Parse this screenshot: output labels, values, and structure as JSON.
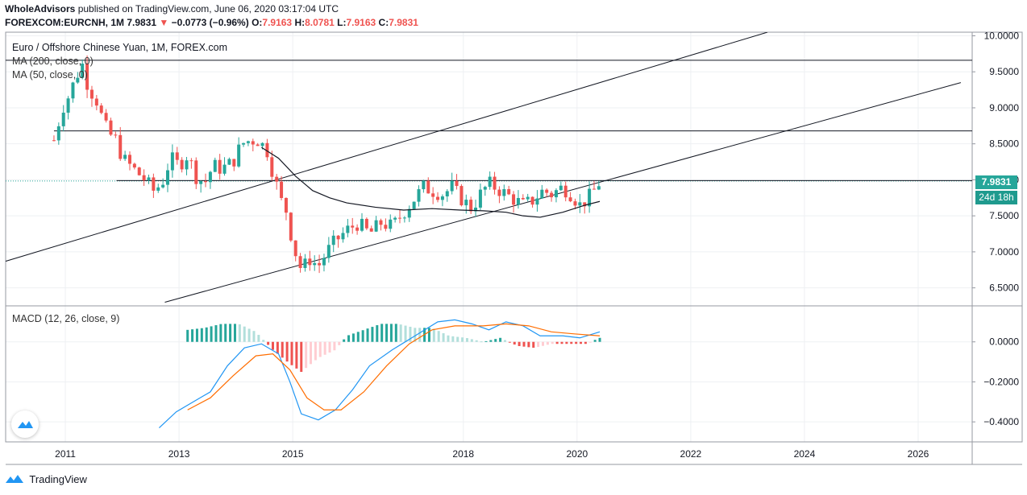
{
  "header": {
    "author": "WholeAdvisors",
    "published_text": "published on TradingView.com, June 06, 2020 03:17:04 UTC",
    "symbol": "FOREXCOM:EURCNH, 1M",
    "last": "7.9831",
    "change": "−0.0773 (−0.96%)",
    "change_arrow": "▼",
    "open_label": "O:",
    "open": "7.9163",
    "high_label": "H:",
    "high": "8.0781",
    "low_label": "L:",
    "low": "7.9163",
    "close_label": "C:",
    "close": "7.9831"
  },
  "legend": {
    "title": "Euro / Offshore Chinese Yuan, 1M, FOREX.com",
    "ma200": "MA (200, close, 0)",
    "ma50": "MA (50, close, 0)",
    "macd": "MACD (12, 26, close, 9)"
  },
  "price_tag": "7.9831",
  "countdown_tag": "24d 18h",
  "footer": {
    "brand": "TradingView"
  },
  "colors": {
    "up": "#26a69a",
    "down": "#ef5350",
    "macd_line": "#2196f3",
    "signal_line": "#ff6d00",
    "hist_up_strong": "#26a69a",
    "hist_up_weak": "#b2dfdb",
    "hist_down_strong": "#ef5350",
    "hist_down_weak": "#ffcdd2"
  },
  "chart_data": [
    {
      "type": "candlestick",
      "title": "Euro / Offshore Chinese Yuan, 1M, FOREX.com",
      "y_ticks": [
        "10.0000",
        "9.5000",
        "9.0000",
        "8.5000",
        "8.0000",
        "7.5000",
        "7.0000",
        "6.5000"
      ],
      "x_ticks": [
        "2011",
        "2013",
        "2015",
        "2018",
        "2020",
        "2022",
        "2024",
        "2026"
      ],
      "ylim": [
        6.25,
        10.05
      ],
      "xlim": [
        2010.0,
        2027.0
      ],
      "grid": true,
      "last_price": 7.9831,
      "close_path": [
        [
          2010.85,
          8.55
        ],
        [
          2011.0,
          9.0
        ],
        [
          2011.1,
          9.15
        ],
        [
          2011.25,
          9.45
        ],
        [
          2011.35,
          9.6
        ],
        [
          2011.45,
          9.3
        ],
        [
          2011.6,
          9.1
        ],
        [
          2011.7,
          8.85
        ],
        [
          2011.8,
          8.65
        ],
        [
          2011.95,
          8.55
        ],
        [
          2012.05,
          8.3
        ],
        [
          2012.25,
          8.15
        ],
        [
          2012.45,
          8.0
        ],
        [
          2012.6,
          7.85
        ],
        [
          2012.75,
          7.95
        ],
        [
          2012.9,
          8.3
        ],
        [
          2013.05,
          8.2
        ],
        [
          2013.2,
          8.35
        ],
        [
          2013.35,
          8.05
        ],
        [
          2013.5,
          7.95
        ],
        [
          2013.65,
          8.2
        ],
        [
          2013.8,
          8.15
        ],
        [
          2014.0,
          8.25
        ],
        [
          2014.15,
          8.5
        ],
        [
          2014.3,
          8.55
        ],
        [
          2014.45,
          8.55
        ],
        [
          2014.6,
          8.4
        ],
        [
          2014.7,
          8.1
        ],
        [
          2014.85,
          7.7
        ],
        [
          2014.95,
          7.55
        ],
        [
          2015.05,
          7.1
        ],
        [
          2015.2,
          6.75
        ],
        [
          2015.35,
          6.9
        ],
        [
          2015.5,
          6.8
        ],
        [
          2015.65,
          7.0
        ],
        [
          2015.8,
          7.15
        ],
        [
          2016.0,
          7.3
        ],
        [
          2016.2,
          7.4
        ],
        [
          2016.4,
          7.25
        ],
        [
          2016.6,
          7.4
        ],
        [
          2016.8,
          7.35
        ],
        [
          2017.0,
          7.55
        ],
        [
          2017.15,
          7.7
        ],
        [
          2017.35,
          7.9
        ],
        [
          2017.5,
          7.85
        ],
        [
          2017.7,
          7.8
        ],
        [
          2017.85,
          7.9
        ],
        [
          2018.0,
          7.75
        ],
        [
          2018.2,
          7.6
        ],
        [
          2018.35,
          7.8
        ],
        [
          2018.5,
          7.95
        ],
        [
          2018.7,
          7.85
        ],
        [
          2018.9,
          7.75
        ],
        [
          2019.1,
          7.65
        ],
        [
          2019.25,
          7.7
        ],
        [
          2019.45,
          7.85
        ],
        [
          2019.6,
          7.8
        ],
        [
          2019.8,
          7.9
        ],
        [
          2019.95,
          7.8
        ],
        [
          2020.1,
          7.65
        ],
        [
          2020.25,
          7.75
        ],
        [
          2020.4,
          7.9
        ],
        [
          2020.45,
          7.98
        ]
      ],
      "ma_line": [
        [
          2014.5,
          8.45
        ],
        [
          2014.8,
          8.3
        ],
        [
          2015.1,
          8.05
        ],
        [
          2015.4,
          7.85
        ],
        [
          2015.7,
          7.75
        ],
        [
          2016.0,
          7.68
        ],
        [
          2016.5,
          7.62
        ],
        [
          2017.0,
          7.58
        ],
        [
          2017.5,
          7.6
        ],
        [
          2018.0,
          7.58
        ],
        [
          2018.4,
          7.57
        ],
        [
          2018.8,
          7.55
        ],
        [
          2019.1,
          7.5
        ],
        [
          2019.4,
          7.48
        ],
        [
          2019.8,
          7.55
        ],
        [
          2020.2,
          7.65
        ],
        [
          2020.45,
          7.7
        ]
      ],
      "horizontal_levels": [
        9.66,
        8.68,
        7.99
      ],
      "trend_lines": [
        [
          [
            2007.6,
            6.3
          ],
          [
            2023.4,
            10.05
          ]
        ],
        [
          [
            2012.8,
            6.3
          ],
          [
            2026.8,
            9.35
          ]
        ]
      ]
    },
    {
      "type": "line",
      "title": "MACD (12, 26, close, 9)",
      "y_ticks": [
        "0.0000",
        "−0.2000",
        "−0.4000"
      ],
      "ylim": [
        -0.5,
        0.18
      ],
      "series": [
        {
          "key": "macd",
          "points": [
            [
              2012.7,
              -0.43
            ],
            [
              2013.0,
              -0.35
            ],
            [
              2013.3,
              -0.3
            ],
            [
              2013.6,
              -0.25
            ],
            [
              2013.9,
              -0.12
            ],
            [
              2014.2,
              -0.03
            ],
            [
              2014.5,
              -0.01
            ],
            [
              2014.8,
              -0.06
            ],
            [
              2015.0,
              -0.2
            ],
            [
              2015.2,
              -0.36
            ],
            [
              2015.5,
              -0.39
            ],
            [
              2015.8,
              -0.34
            ],
            [
              2016.1,
              -0.24
            ],
            [
              2016.4,
              -0.12
            ],
            [
              2016.8,
              -0.04
            ],
            [
              2017.2,
              0.03
            ],
            [
              2017.6,
              0.1
            ],
            [
              2017.9,
              0.11
            ],
            [
              2018.2,
              0.09
            ],
            [
              2018.5,
              0.06
            ],
            [
              2018.8,
              0.1
            ],
            [
              2019.1,
              0.08
            ],
            [
              2019.4,
              0.03
            ],
            [
              2019.8,
              0.03
            ],
            [
              2020.1,
              0.02
            ],
            [
              2020.45,
              0.05
            ]
          ]
        },
        {
          "key": "signal",
          "points": [
            [
              2013.2,
              -0.34
            ],
            [
              2013.6,
              -0.28
            ],
            [
              2014.0,
              -0.17
            ],
            [
              2014.4,
              -0.07
            ],
            [
              2014.7,
              -0.06
            ],
            [
              2015.0,
              -0.14
            ],
            [
              2015.3,
              -0.28
            ],
            [
              2015.6,
              -0.34
            ],
            [
              2015.9,
              -0.34
            ],
            [
              2016.3,
              -0.25
            ],
            [
              2016.7,
              -0.12
            ],
            [
              2017.1,
              -0.01
            ],
            [
              2017.5,
              0.06
            ],
            [
              2017.9,
              0.08
            ],
            [
              2018.4,
              0.08
            ],
            [
              2018.8,
              0.09
            ],
            [
              2019.2,
              0.08
            ],
            [
              2019.6,
              0.05
            ],
            [
              2020.0,
              0.04
            ],
            [
              2020.45,
              0.03
            ]
          ]
        }
      ],
      "histogram_approx": [
        [
          2013.2,
          0.06
        ],
        [
          2013.5,
          0.07
        ],
        [
          2013.8,
          0.09
        ],
        [
          2014.1,
          0.09
        ],
        [
          2014.4,
          0.05
        ],
        [
          2014.7,
          -0.04
        ],
        [
          2015.0,
          -0.11
        ],
        [
          2015.2,
          -0.15
        ],
        [
          2015.5,
          -0.08
        ],
        [
          2015.8,
          -0.04
        ],
        [
          2016.0,
          0.03
        ],
        [
          2016.3,
          0.06
        ],
        [
          2016.6,
          0.09
        ],
        [
          2016.9,
          0.09
        ],
        [
          2017.2,
          0.07
        ],
        [
          2017.5,
          0.07
        ],
        [
          2017.8,
          0.03
        ],
        [
          2018.1,
          0.02
        ],
        [
          2018.4,
          0.0
        ],
        [
          2018.7,
          0.02
        ],
        [
          2019.0,
          -0.02
        ],
        [
          2019.3,
          -0.03
        ],
        [
          2019.6,
          -0.01
        ],
        [
          2019.9,
          -0.01
        ],
        [
          2020.2,
          -0.01
        ],
        [
          2020.45,
          0.02
        ]
      ]
    }
  ]
}
